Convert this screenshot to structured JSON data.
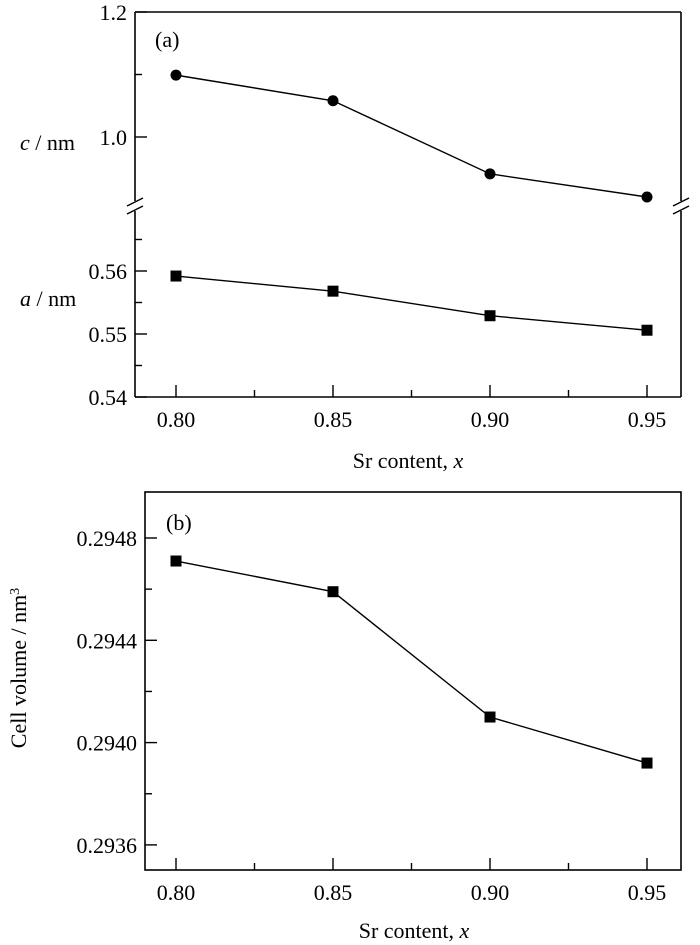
{
  "chart_data": [
    {
      "type": "line",
      "panel_label": "(a)",
      "xlabel": "Sr content, x",
      "xlabel_text": "Sr content, ",
      "xlabel_var": "x",
      "x": [
        0.8,
        0.85,
        0.9,
        0.95
      ],
      "xticks": [
        "0.80",
        "0.85",
        "0.90",
        "0.95"
      ],
      "xlim": [
        0.79,
        0.96
      ],
      "broken_y_axis": true,
      "subplots": [
        {
          "ylabel": "c / nm",
          "ylabel_var": "c",
          "ylabel_unit": " / nm",
          "ylim": [
            0.89,
            1.2
          ],
          "yticks": [
            "1.0",
            "1.2"
          ],
          "ytick_values": [
            1.0,
            1.2
          ],
          "marker": "circle",
          "series": [
            {
              "name": "c",
              "values": [
                1.099,
                1.058,
                0.941,
                0.904
              ]
            }
          ]
        },
        {
          "ylabel": "a / nm",
          "ylabel_var": "a",
          "ylabel_unit": " / nm",
          "ylim": [
            0.54,
            0.5705
          ],
          "yticks": [
            "0.54",
            "0.55",
            "0.56"
          ],
          "ytick_values": [
            0.54,
            0.55,
            0.56
          ],
          "marker": "square",
          "series": [
            {
              "name": "a",
              "values": [
                0.5592,
                0.5568,
                0.5529,
                0.5506
              ]
            }
          ]
        }
      ]
    },
    {
      "type": "line",
      "panel_label": "(b)",
      "xlabel": "Sr content, x",
      "xlabel_text": "Sr content, ",
      "xlabel_var": "x",
      "ylabel": "Cell volume / nm3",
      "ylabel_text": "Cell volume / nm",
      "ylabel_sup": "3",
      "x": [
        0.8,
        0.85,
        0.9,
        0.95
      ],
      "xticks": [
        "0.80",
        "0.85",
        "0.90",
        "0.95"
      ],
      "xlim": [
        0.79,
        0.96
      ],
      "ylim": [
        0.29352,
        0.29498
      ],
      "yticks": [
        "0.2936",
        "0.2940",
        "0.2944",
        "0.2948"
      ],
      "ytick_values": [
        0.2936,
        0.294,
        0.2944,
        0.2948
      ],
      "marker": "square",
      "series": [
        {
          "name": "Cell volume",
          "values": [
            0.29471,
            0.29459,
            0.2941,
            0.29392
          ]
        }
      ]
    }
  ]
}
